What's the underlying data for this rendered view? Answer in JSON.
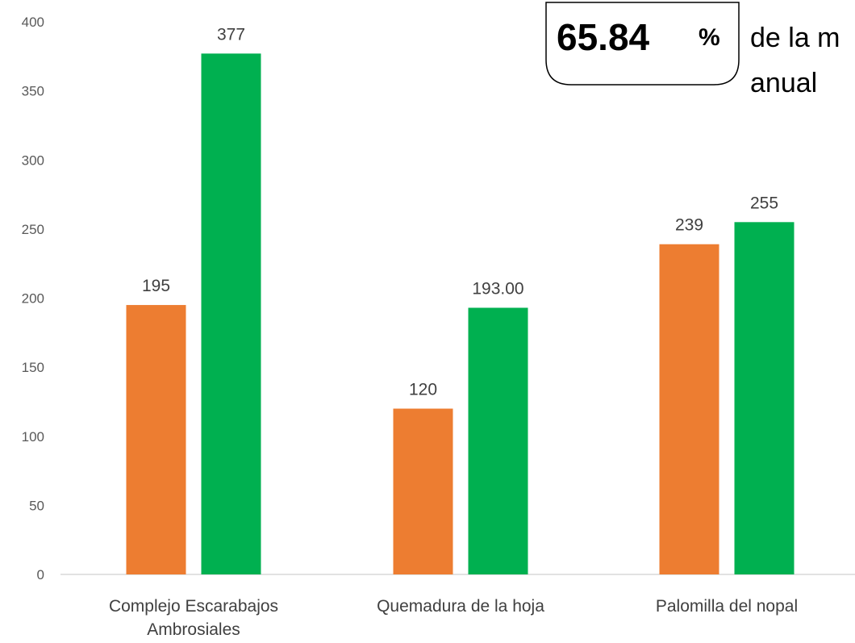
{
  "chart_data": {
    "type": "bar",
    "categories": [
      [
        "Complejo Escarabajos",
        "Ambrosiales"
      ],
      [
        "Quemadura de la hoja"
      ],
      [
        "Palomilla del nopal"
      ]
    ],
    "series": [
      {
        "color": "#ED7D31",
        "values": [
          195,
          120,
          239
        ],
        "labels": [
          "195",
          "120",
          "239"
        ]
      },
      {
        "color": "#00B050",
        "values": [
          377,
          193,
          255
        ],
        "labels": [
          "377",
          "193.00",
          "255"
        ]
      }
    ],
    "ylim": [
      0,
      400
    ],
    "yticks": [
      0,
      50,
      100,
      150,
      200,
      250,
      300,
      350,
      400
    ],
    "grid": false,
    "legend": "none"
  },
  "callout": {
    "value": "65.84",
    "unit": "%",
    "text_line1": "de la m",
    "text_line2": "anual"
  }
}
